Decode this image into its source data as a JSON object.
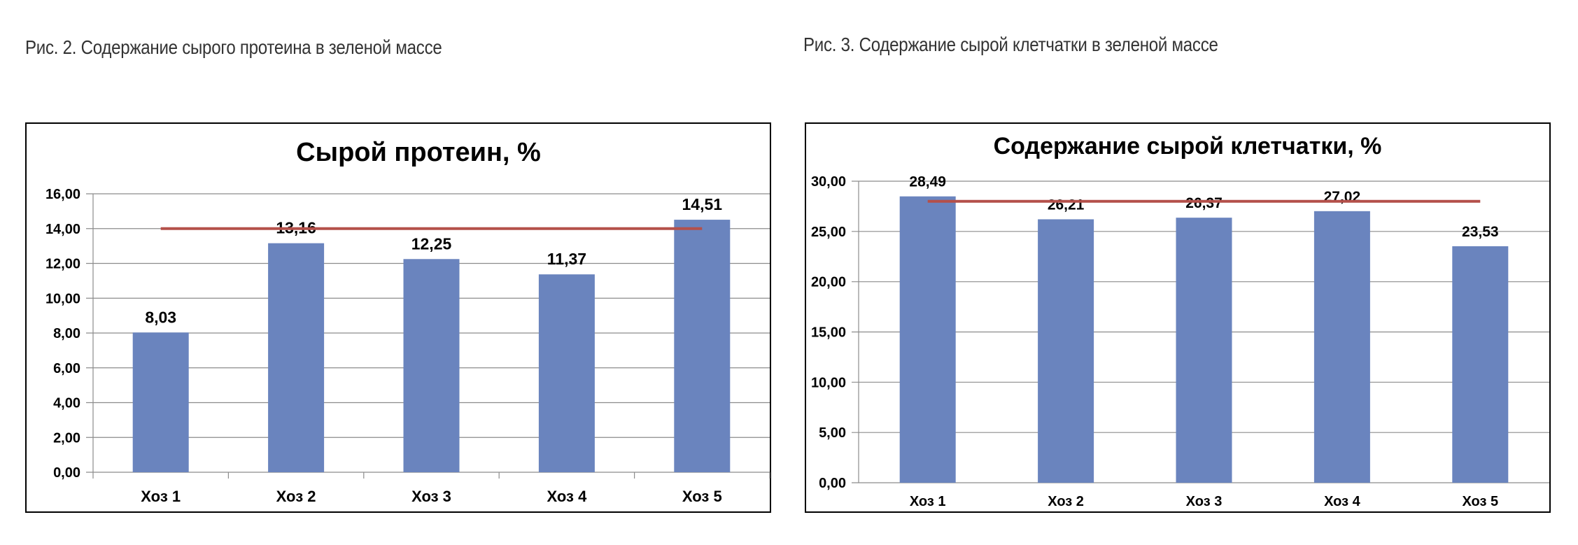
{
  "captions": {
    "fig2": "Рис. 2. Содержание сырого протеина в зеленой массе",
    "fig3": "Рис. 3. Содержание сырой клетчатки в зеленой массе"
  },
  "colors": {
    "bar": "#6a84be",
    "line": "#b4504a",
    "grid": "#8c8c8c"
  },
  "chart_data": [
    {
      "type": "bar",
      "title": "Сырой протеин, %",
      "categories": [
        "Хоз 1",
        "Хоз 2",
        "Хоз 3",
        "Хоз 4",
        "Хоз 5"
      ],
      "values": [
        8.03,
        13.16,
        12.25,
        11.37,
        14.51
      ],
      "data_labels": [
        "8,03",
        "13,16",
        "12,25",
        "11,37",
        "14,51"
      ],
      "ylim": [
        0,
        16
      ],
      "yticks": [
        "0,00",
        "2,00",
        "4,00",
        "6,00",
        "8,00",
        "10,00",
        "12,00",
        "14,00",
        "16,00"
      ],
      "reference_line": 14,
      "grid": true,
      "legend": "none"
    },
    {
      "type": "bar",
      "title": "Содержание сырой клетчатки, %",
      "categories": [
        "Хоз 1",
        "Хоз 2",
        "Хоз 3",
        "Хоз 4",
        "Хоз 5"
      ],
      "values": [
        28.49,
        26.21,
        26.37,
        27.02,
        23.53
      ],
      "data_labels": [
        "28,49",
        "26,21",
        "26,37",
        "27,02",
        "23,53"
      ],
      "ylim": [
        0,
        30
      ],
      "yticks": [
        "0,00",
        "5,00",
        "10,00",
        "15,00",
        "20,00",
        "25,00",
        "30,00"
      ],
      "reference_line": 28,
      "grid": true,
      "legend": "none"
    }
  ]
}
